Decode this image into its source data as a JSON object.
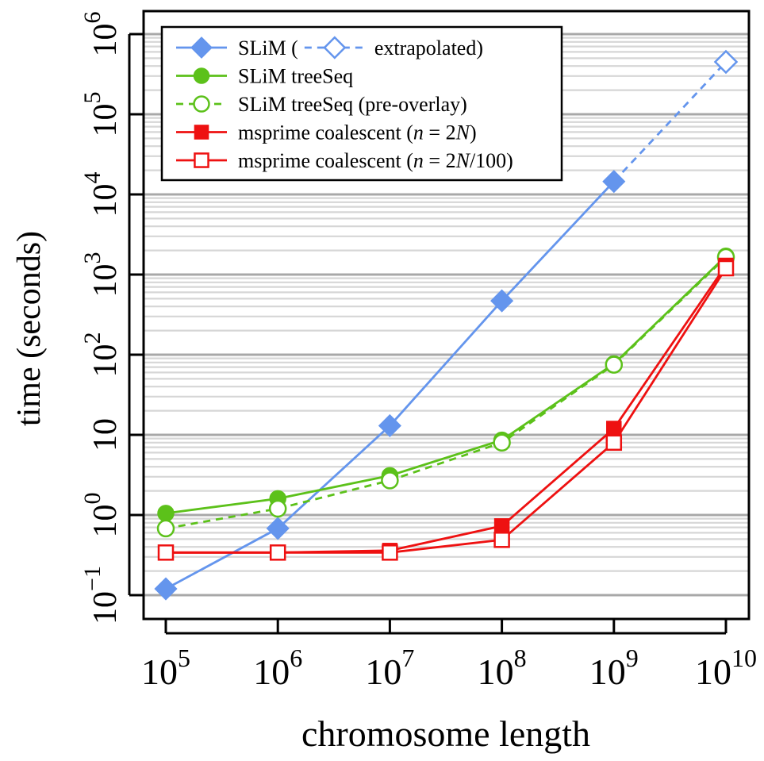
{
  "chart_data": {
    "type": "line",
    "title": "",
    "xlabel": "chromosome length",
    "ylabel": "time (seconds)",
    "x_scale": "log10",
    "y_scale": "log10",
    "xlim": [
      100000,
      10000000000
    ],
    "ylim": [
      0.1,
      1000000
    ],
    "grid": "horizontal",
    "legend_position": "top-left",
    "x_ticks": [
      {
        "value": 100000,
        "base": "10",
        "exp": "5"
      },
      {
        "value": 1000000,
        "base": "10",
        "exp": "6"
      },
      {
        "value": 10000000,
        "base": "10",
        "exp": "7"
      },
      {
        "value": 100000000,
        "base": "10",
        "exp": "8"
      },
      {
        "value": 1000000000,
        "base": "10",
        "exp": "9"
      },
      {
        "value": 10000000000,
        "base": "10",
        "exp": "10"
      }
    ],
    "y_ticks": [
      {
        "value": 0.1,
        "base": "10",
        "exp": "−1"
      },
      {
        "value": 1,
        "base": "10",
        "exp": "0"
      },
      {
        "value": 10,
        "base": "10",
        "exp": ""
      },
      {
        "value": 100,
        "base": "10",
        "exp": "2"
      },
      {
        "value": 1000,
        "base": "10",
        "exp": "3"
      },
      {
        "value": 10000,
        "base": "10",
        "exp": "4"
      },
      {
        "value": 100000,
        "base": "10",
        "exp": "5"
      },
      {
        "value": 1000000,
        "base": "10",
        "exp": "6"
      }
    ],
    "x": [
      100000,
      1000000,
      10000000,
      100000000,
      1000000000,
      10000000000
    ],
    "series": [
      {
        "name": "SLiM",
        "color": "#6495ed",
        "marker": "diamond",
        "filled": true,
        "dash": false,
        "values": [
          0.12,
          0.68,
          13,
          470,
          14500,
          null
        ]
      },
      {
        "name": "extrapolated",
        "color": "#6495ed",
        "marker": "diamond",
        "filled": false,
        "dash": true,
        "values": [
          null,
          null,
          null,
          null,
          14500,
          450000
        ],
        "marker_at": [
          5
        ]
      },
      {
        "name": "SLiM treeSeq",
        "color": "#5cc11a",
        "marker": "circle",
        "filled": true,
        "dash": false,
        "values": [
          1.05,
          1.6,
          3.1,
          8.6,
          77,
          1700
        ]
      },
      {
        "name": "SLiM treeSeq (pre-overlay)",
        "color": "#5cc11a",
        "marker": "circle",
        "filled": false,
        "dash": true,
        "values": [
          0.68,
          1.2,
          2.7,
          8.0,
          75,
          1650
        ]
      },
      {
        "name": "msprime coalescent (n = 2N)",
        "color": "#ee1111",
        "marker": "square",
        "filled": true,
        "dash": false,
        "values": [
          0.34,
          0.34,
          0.36,
          0.73,
          12,
          1300
        ]
      },
      {
        "name": "msprime coalescent (n = 2N/100)",
        "color": "#ee1111",
        "marker": "square",
        "filled": false,
        "dash": false,
        "values": [
          0.34,
          0.34,
          0.34,
          0.49,
          8.0,
          1200
        ]
      }
    ],
    "legend": [
      {
        "marker": "diamond",
        "color": "#6495ed",
        "filled": true,
        "dash": false,
        "label_parts": [
          {
            "t": "SLiM (",
            "i": false
          }
        ],
        "extra": {
          "marker": "diamond",
          "filled": false,
          "dash": true,
          "label": "extrapolated)"
        }
      },
      {
        "marker": "circle",
        "color": "#5cc11a",
        "filled": true,
        "dash": false,
        "label_parts": [
          {
            "t": "SLiM treeSeq",
            "i": false
          }
        ]
      },
      {
        "marker": "circle",
        "color": "#5cc11a",
        "filled": false,
        "dash": true,
        "label_parts": [
          {
            "t": "SLiM treeSeq (pre-overlay)",
            "i": false
          }
        ]
      },
      {
        "marker": "square",
        "color": "#ee1111",
        "filled": true,
        "dash": false,
        "label_parts": [
          {
            "t": "msprime coalescent (",
            "i": false
          },
          {
            "t": "n",
            "i": true
          },
          {
            "t": " = 2",
            "i": false
          },
          {
            "t": "N",
            "i": true
          },
          {
            "t": ")",
            "i": false
          }
        ]
      },
      {
        "marker": "square",
        "color": "#ee1111",
        "filled": false,
        "dash": false,
        "label_parts": [
          {
            "t": "msprime coalescent (",
            "i": false
          },
          {
            "t": "n",
            "i": true
          },
          {
            "t": " = 2",
            "i": false
          },
          {
            "t": "N",
            "i": true
          },
          {
            "t": "/100)",
            "i": false
          }
        ]
      }
    ]
  }
}
